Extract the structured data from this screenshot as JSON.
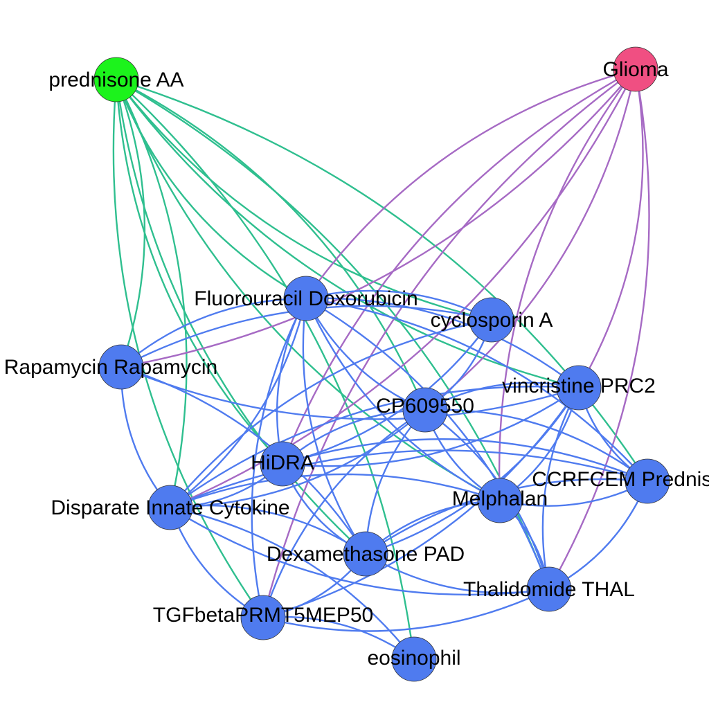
{
  "graph": {
    "colors": {
      "drug_edge": "#4f7bef",
      "prednisone_edge": "#2fbf8f",
      "glioma_edge": "#a66ac4",
      "drug_node": "#4f7bef",
      "prednisone_node": "#1cf31c",
      "glioma_node": "#f04f82"
    },
    "nodes": [
      {
        "id": "prednisone",
        "label": "prednisone AA",
        "group": "prednisone"
      },
      {
        "id": "glioma",
        "label": "Glioma",
        "group": "glioma"
      },
      {
        "id": "fluoro",
        "label": "Fluorouracil Doxorubicin",
        "group": "drug"
      },
      {
        "id": "cyclo",
        "label": "cyclosporin A",
        "group": "drug"
      },
      {
        "id": "rapa",
        "label": "Rapamycin Rapamycin",
        "group": "drug"
      },
      {
        "id": "vinc",
        "label": "vincristine PRC2",
        "group": "drug"
      },
      {
        "id": "cp",
        "label": "CP609550",
        "group": "drug"
      },
      {
        "id": "hidra",
        "label": "HiDRA",
        "group": "drug"
      },
      {
        "id": "ccrf",
        "label": "CCRFCEM Prednisolone",
        "group": "drug"
      },
      {
        "id": "mel",
        "label": "Melphalan",
        "group": "drug"
      },
      {
        "id": "disp",
        "label": "Disparate Innate Cytokine",
        "group": "drug"
      },
      {
        "id": "dexa",
        "label": "Dexamethasone PAD",
        "group": "drug"
      },
      {
        "id": "thal",
        "label": "Thalidomide THAL",
        "group": "drug"
      },
      {
        "id": "tgf",
        "label": "TGFbetaPRMT5MEP50",
        "group": "drug"
      },
      {
        "id": "eos",
        "label": "eosinophil",
        "group": "drug"
      }
    ],
    "edges": [
      {
        "s": "prednisone",
        "t": "cyclo",
        "k": "p"
      },
      {
        "s": "prednisone",
        "t": "rapa",
        "k": "p"
      },
      {
        "s": "prednisone",
        "t": "vinc",
        "k": "p"
      },
      {
        "s": "prednisone",
        "t": "cp",
        "k": "p"
      },
      {
        "s": "prednisone",
        "t": "hidra",
        "k": "p"
      },
      {
        "s": "prednisone",
        "t": "ccrf",
        "k": "p"
      },
      {
        "s": "prednisone",
        "t": "mel",
        "k": "p"
      },
      {
        "s": "prednisone",
        "t": "disp",
        "k": "p"
      },
      {
        "s": "prednisone",
        "t": "dexa",
        "k": "p"
      },
      {
        "s": "prednisone",
        "t": "thal",
        "k": "p"
      },
      {
        "s": "prednisone",
        "t": "tgf",
        "k": "p"
      },
      {
        "s": "prednisone",
        "t": "eos",
        "k": "p"
      },
      {
        "s": "prednisone",
        "t": "fluoro",
        "k": "p"
      },
      {
        "s": "glioma",
        "t": "rapa",
        "k": "g"
      },
      {
        "s": "glioma",
        "t": "fluoro",
        "k": "g"
      },
      {
        "s": "glioma",
        "t": "cp",
        "k": "g"
      },
      {
        "s": "glioma",
        "t": "hidra",
        "k": "g"
      },
      {
        "s": "glioma",
        "t": "vinc",
        "k": "g"
      },
      {
        "s": "glioma",
        "t": "mel",
        "k": "g"
      },
      {
        "s": "glioma",
        "t": "thal",
        "k": "g"
      },
      {
        "s": "glioma",
        "t": "tgf",
        "k": "g"
      },
      {
        "s": "glioma",
        "t": "disp",
        "k": "g"
      },
      {
        "s": "fluoro",
        "t": "cp",
        "k": "d",
        "w": 3
      },
      {
        "s": "fluoro",
        "t": "cyclo",
        "k": "d"
      },
      {
        "s": "fluoro",
        "t": "rapa",
        "k": "d"
      },
      {
        "s": "fluoro",
        "t": "vinc",
        "k": "d"
      },
      {
        "s": "fluoro",
        "t": "hidra",
        "k": "d"
      },
      {
        "s": "fluoro",
        "t": "ccrf",
        "k": "d"
      },
      {
        "s": "fluoro",
        "t": "mel",
        "k": "d"
      },
      {
        "s": "fluoro",
        "t": "disp",
        "k": "d"
      },
      {
        "s": "fluoro",
        "t": "dexa",
        "k": "d"
      },
      {
        "s": "fluoro",
        "t": "thal",
        "k": "d"
      },
      {
        "s": "fluoro",
        "t": "tgf",
        "k": "d"
      },
      {
        "s": "rapa",
        "t": "cyclo",
        "k": "d"
      },
      {
        "s": "rapa",
        "t": "disp",
        "k": "d"
      },
      {
        "s": "rapa",
        "t": "dexa",
        "k": "d"
      },
      {
        "s": "rapa",
        "t": "vinc",
        "k": "d"
      },
      {
        "s": "cyclo",
        "t": "cp",
        "k": "d"
      },
      {
        "s": "cyclo",
        "t": "disp",
        "k": "d"
      },
      {
        "s": "cyclo",
        "t": "hidra",
        "k": "d"
      },
      {
        "s": "vinc",
        "t": "cp",
        "k": "d",
        "w": 2
      },
      {
        "s": "vinc",
        "t": "hidra",
        "k": "d"
      },
      {
        "s": "vinc",
        "t": "ccrf",
        "k": "d"
      },
      {
        "s": "vinc",
        "t": "mel",
        "k": "d"
      },
      {
        "s": "vinc",
        "t": "disp",
        "k": "d"
      },
      {
        "s": "vinc",
        "t": "dexa",
        "k": "d"
      },
      {
        "s": "vinc",
        "t": "thal",
        "k": "d"
      },
      {
        "s": "vinc",
        "t": "tgf",
        "k": "d"
      },
      {
        "s": "cp",
        "t": "hidra",
        "k": "d"
      },
      {
        "s": "cp",
        "t": "ccrf",
        "k": "d"
      },
      {
        "s": "cp",
        "t": "mel",
        "k": "d"
      },
      {
        "s": "cp",
        "t": "disp",
        "k": "d"
      },
      {
        "s": "cp",
        "t": "dexa",
        "k": "d"
      },
      {
        "s": "cp",
        "t": "thal",
        "k": "d"
      },
      {
        "s": "cp",
        "t": "tgf",
        "k": "d"
      },
      {
        "s": "hidra",
        "t": "disp",
        "k": "d"
      },
      {
        "s": "hidra",
        "t": "dexa",
        "k": "d"
      },
      {
        "s": "hidra",
        "t": "ccrf",
        "k": "d"
      },
      {
        "s": "ccrf",
        "t": "dexa",
        "k": "d"
      },
      {
        "s": "ccrf",
        "t": "thal",
        "k": "d"
      },
      {
        "s": "ccrf",
        "t": "disp",
        "k": "d"
      },
      {
        "s": "ccrf",
        "t": "mel",
        "k": "d"
      },
      {
        "s": "mel",
        "t": "dexa",
        "k": "d"
      },
      {
        "s": "mel",
        "t": "thal",
        "k": "d"
      },
      {
        "s": "mel",
        "t": "disp",
        "k": "d"
      },
      {
        "s": "disp",
        "t": "dexa",
        "k": "d"
      },
      {
        "s": "disp",
        "t": "tgf",
        "k": "d"
      },
      {
        "s": "disp",
        "t": "eos",
        "k": "d"
      },
      {
        "s": "disp",
        "t": "thal",
        "k": "d"
      },
      {
        "s": "dexa",
        "t": "tgf",
        "k": "d"
      },
      {
        "s": "dexa",
        "t": "thal",
        "k": "d"
      },
      {
        "s": "tgf",
        "t": "eos",
        "k": "d"
      },
      {
        "s": "tgf",
        "t": "thal",
        "k": "d"
      }
    ]
  }
}
